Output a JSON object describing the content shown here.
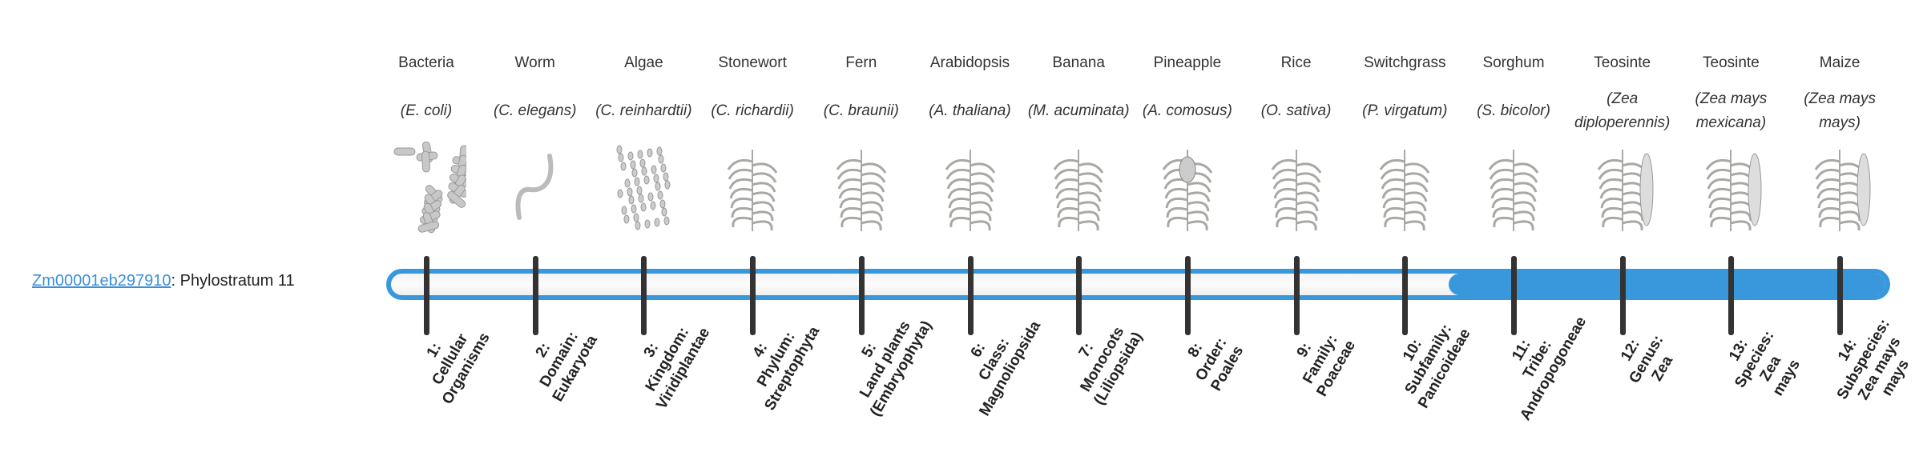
{
  "gene": {
    "id": "Zm00001eb297910",
    "suffix": ": Phylostratum 11"
  },
  "colors": {
    "accent": "#3898db",
    "tick": "#333333",
    "link": "#3a8fd9"
  },
  "progress": {
    "current_stratum": 11,
    "total_strata": 14
  },
  "organisms": [
    {
      "common": "Bacteria",
      "sci": "(E. coli)",
      "icon": "bacteria-icon",
      "label": [
        "1:",
        "Cellular",
        "Organisms"
      ]
    },
    {
      "common": "Worm",
      "sci": "(C. elegans)",
      "icon": "worm-icon",
      "label": [
        "2:",
        "Domain:",
        "Eukaryota"
      ]
    },
    {
      "common": "Algae",
      "sci": "(C. reinhardtii)",
      "icon": "algae-icon",
      "label": [
        "3:",
        "Kingdom:",
        "Viridiplantae"
      ]
    },
    {
      "common": "Stonewort",
      "sci": "(C. richardii)",
      "icon": "stonewort-icon",
      "label": [
        "4:",
        "Phylum:",
        "Streptophyta"
      ]
    },
    {
      "common": "Fern",
      "sci": "(C. braunii)",
      "icon": "fern-icon",
      "label": [
        "5:",
        "Land plants",
        "(Embryophyta)"
      ]
    },
    {
      "common": "Arabidopsis",
      "sci": "(A. thaliana)",
      "icon": "arabidopsis-icon",
      "label": [
        "6:",
        "Class:",
        "Magnoliopsida"
      ]
    },
    {
      "common": "Banana",
      "sci": "(M. acuminata)",
      "icon": "banana-plant-icon",
      "label": [
        "7:",
        "Monocots",
        "(Liliopsida)"
      ]
    },
    {
      "common": "Pineapple",
      "sci": "(A. comosus)",
      "icon": "pineapple-icon",
      "label": [
        "8:",
        "Order:",
        "Poales"
      ]
    },
    {
      "common": "Rice",
      "sci": "(O. sativa)",
      "icon": "rice-icon",
      "label": [
        "9:",
        "Family:",
        "Poaceae"
      ]
    },
    {
      "common": "Switchgrass",
      "sci": "(P. virgatum)",
      "icon": "switchgrass-icon",
      "label": [
        "10:",
        "Subfamily:",
        "Panicoideae"
      ]
    },
    {
      "common": "Sorghum",
      "sci": "(S. bicolor)",
      "icon": "sorghum-icon",
      "label": [
        "11:",
        "Tribe:",
        "Andropogoneae"
      ]
    },
    {
      "common": "Teosinte",
      "sci": "(Zea diploperennis)",
      "icon": "teosinte-icon",
      "label": [
        "12:",
        "Genus:",
        "Zea"
      ]
    },
    {
      "common": "Teosinte",
      "sci": "(Zea mays mexicana)",
      "icon": "teosinte-icon",
      "label": [
        "13:",
        "Species:",
        "Zea",
        "mays"
      ]
    },
    {
      "common": "Maize",
      "sci": "(Zea mays mays)",
      "icon": "maize-icon",
      "label": [
        "14:",
        "Subspecies:",
        "Zea mays",
        "mays"
      ]
    }
  ]
}
